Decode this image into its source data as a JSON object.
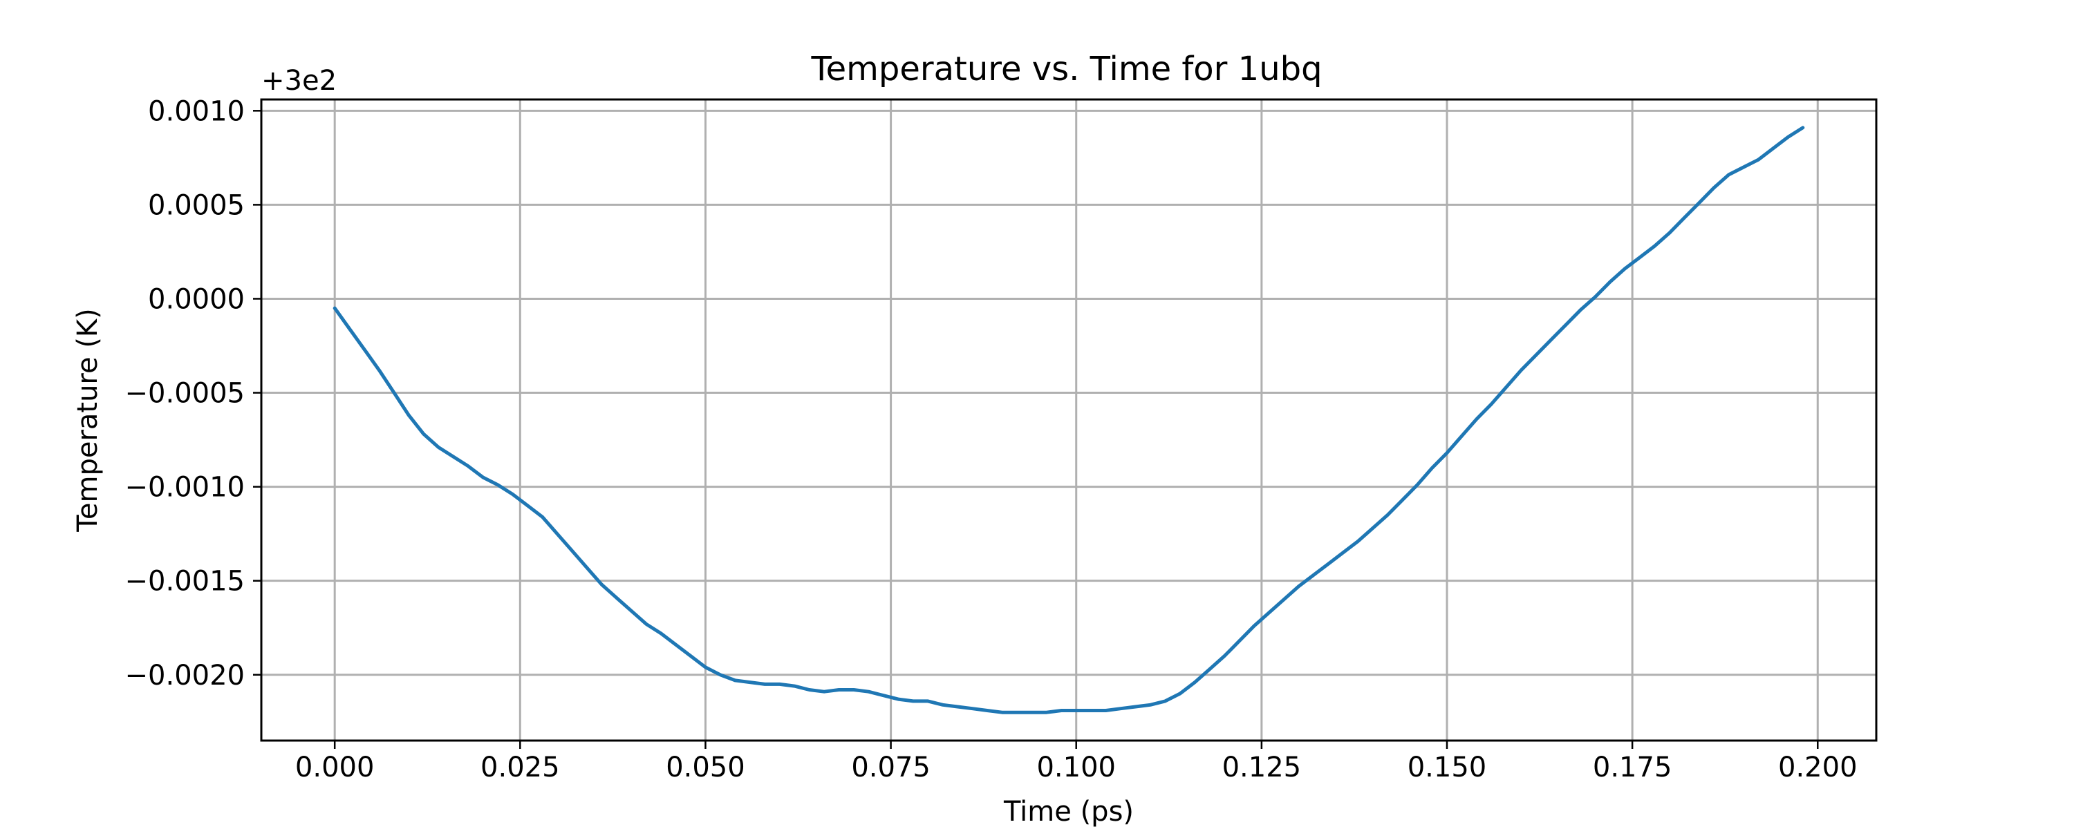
{
  "chart_data": {
    "type": "line",
    "title": "Temperature vs. Time for 1ubq",
    "xlabel": "Time (ps)",
    "ylabel": "Temperature (K)",
    "y_offset_label": "+3e2",
    "xlim": [
      -0.0099,
      0.2079
    ],
    "ylim": [
      -0.00235,
      0.00106
    ],
    "x_ticks": [
      0.0,
      0.025,
      0.05,
      0.075,
      0.1,
      0.125,
      0.15,
      0.175,
      0.2
    ],
    "x_tick_labels": [
      "0.000",
      "0.025",
      "0.050",
      "0.075",
      "0.100",
      "0.125",
      "0.150",
      "0.175",
      "0.200"
    ],
    "y_ticks": [
      0.001,
      0.0005,
      0.0,
      -0.0005,
      -0.001,
      -0.0015,
      -0.002
    ],
    "y_tick_labels": [
      "0.0010",
      "0.0005",
      "0.0000",
      "−0.0005",
      "−0.0010",
      "−0.0015",
      "−0.0020"
    ],
    "grid": true,
    "series": [
      {
        "color": "#1f77b4",
        "x": [
          0.0,
          0.002,
          0.004,
          0.006,
          0.008,
          0.01,
          0.012,
          0.014,
          0.016,
          0.018,
          0.02,
          0.022,
          0.024,
          0.026,
          0.028,
          0.03,
          0.032,
          0.034,
          0.036,
          0.038,
          0.04,
          0.042,
          0.044,
          0.046,
          0.048,
          0.05,
          0.052,
          0.054,
          0.056,
          0.058,
          0.06,
          0.062,
          0.064,
          0.066,
          0.068,
          0.07,
          0.072,
          0.074,
          0.076,
          0.078,
          0.08,
          0.082,
          0.084,
          0.086,
          0.088,
          0.09,
          0.092,
          0.094,
          0.096,
          0.098,
          0.1,
          0.102,
          0.104,
          0.106,
          0.108,
          0.11,
          0.112,
          0.114,
          0.116,
          0.118,
          0.12,
          0.122,
          0.124,
          0.126,
          0.128,
          0.13,
          0.132,
          0.134,
          0.136,
          0.138,
          0.14,
          0.142,
          0.144,
          0.146,
          0.148,
          0.15,
          0.152,
          0.154,
          0.156,
          0.158,
          0.16,
          0.162,
          0.164,
          0.166,
          0.168,
          0.17,
          0.172,
          0.174,
          0.176,
          0.178,
          0.18,
          0.182,
          0.184,
          0.186,
          0.188,
          0.19,
          0.192,
          0.194,
          0.196,
          0.198
        ],
        "values": [
          -5e-05,
          -0.00016,
          -0.00027,
          -0.00038,
          -0.0005,
          -0.00062,
          -0.00072,
          -0.00079,
          -0.00084,
          -0.00089,
          -0.00095,
          -0.00099,
          -0.00104,
          -0.0011,
          -0.00116,
          -0.00125,
          -0.00134,
          -0.00143,
          -0.00152,
          -0.00159,
          -0.00166,
          -0.00173,
          -0.00178,
          -0.00184,
          -0.0019,
          -0.00196,
          -0.002,
          -0.00203,
          -0.00204,
          -0.00205,
          -0.00205,
          -0.00206,
          -0.00208,
          -0.00209,
          -0.00208,
          -0.00208,
          -0.00209,
          -0.00211,
          -0.00213,
          -0.00214,
          -0.00214,
          -0.00216,
          -0.00217,
          -0.00218,
          -0.00219,
          -0.0022,
          -0.0022,
          -0.0022,
          -0.0022,
          -0.00219,
          -0.00219,
          -0.00219,
          -0.00219,
          -0.00218,
          -0.00217,
          -0.00216,
          -0.00214,
          -0.0021,
          -0.00204,
          -0.00197,
          -0.0019,
          -0.00182,
          -0.00174,
          -0.00167,
          -0.0016,
          -0.00153,
          -0.00147,
          -0.00141,
          -0.00135,
          -0.00129,
          -0.00122,
          -0.00115,
          -0.00107,
          -0.00099,
          -0.0009,
          -0.00082,
          -0.00073,
          -0.00064,
          -0.00056,
          -0.00047,
          -0.00038,
          -0.0003,
          -0.00022,
          -0.00014,
          -6e-05,
          1e-05,
          9e-05,
          0.00016,
          0.00022,
          0.00028,
          0.00035,
          0.00043,
          0.00051,
          0.00059,
          0.00066,
          0.0007,
          0.00074,
          0.0008,
          0.00086,
          0.00091
        ]
      }
    ]
  }
}
